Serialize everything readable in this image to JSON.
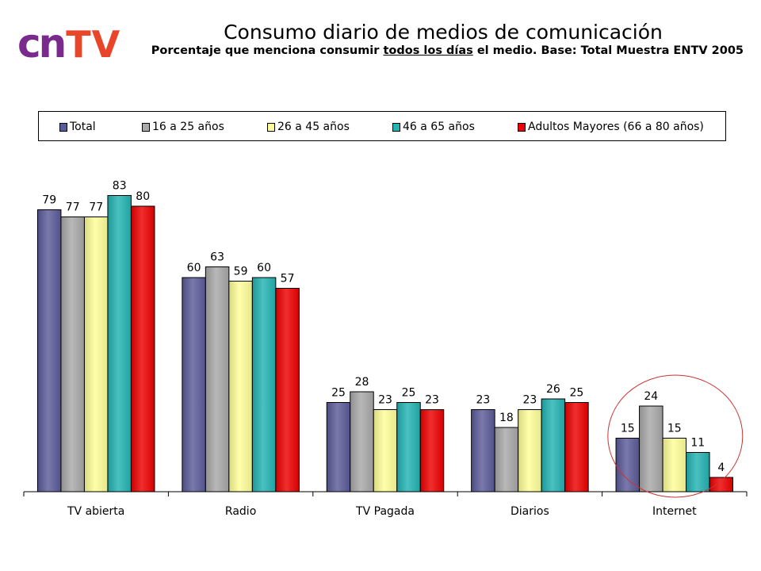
{
  "logo": {
    "cn": "cn",
    "tv": "TV"
  },
  "header": {
    "title": "Consumo diario de medios de comunicación",
    "subtitle_pre": "Porcentaje que menciona consumir ",
    "subtitle_u": "todos los días",
    "subtitle_post": " el medio. Base: Total Muestra ENTV 2005"
  },
  "chart_data": {
    "type": "bar",
    "title": "Consumo diario de medios de comunicación",
    "xlabel": "",
    "ylabel": "",
    "ylim": [
      0,
      90
    ],
    "grid": false,
    "legend_position": "top",
    "categories": [
      "TV abierta",
      "Radio",
      "TV Pagada",
      "Diarios",
      "Internet"
    ],
    "series": [
      {
        "name": "Total",
        "color": "#5b5b9a",
        "values": [
          79,
          60,
          25,
          23,
          15
        ]
      },
      {
        "name": "16 a 25 años",
        "color": "#a9a9a9",
        "values": [
          77,
          63,
          28,
          18,
          24
        ]
      },
      {
        "name": "26 a 45 años",
        "color": "#ffff99",
        "values": [
          77,
          59,
          23,
          23,
          15
        ]
      },
      {
        "name": "46 a 65 años",
        "color": "#22b3b3",
        "values": [
          83,
          60,
          25,
          26,
          11
        ]
      },
      {
        "name": "Adultos Mayores (66 a 80 años)",
        "color": "#ee0000",
        "values": [
          80,
          57,
          23,
          25,
          4
        ]
      }
    ],
    "annotation": {
      "type": "circle",
      "category": "Internet",
      "color": "#cc3333"
    }
  }
}
